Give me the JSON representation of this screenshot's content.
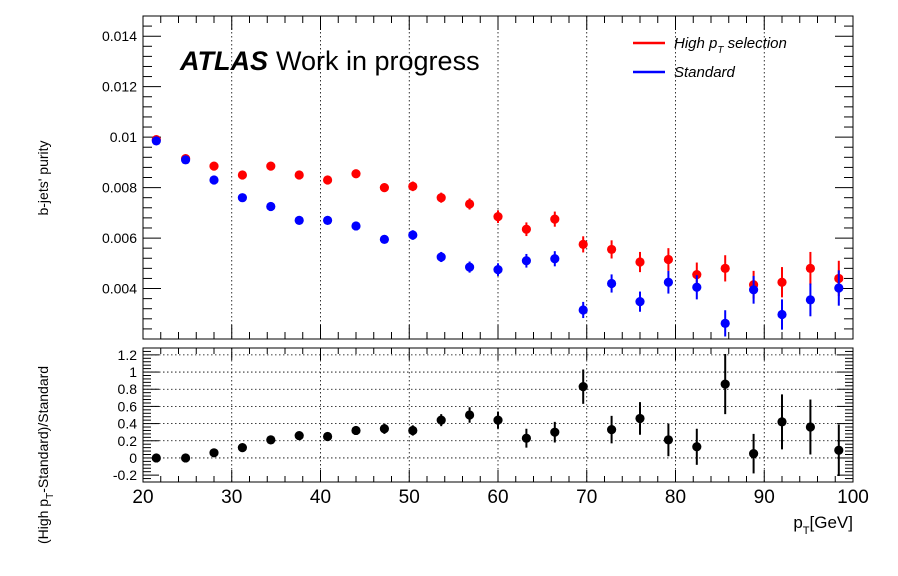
{
  "atlas_label": {
    "bold": "ATLAS",
    "rest": "Work in progress"
  },
  "legend": {
    "high_pt": {
      "prefix": "High p",
      "sub": "T",
      "suffix": " selection",
      "color": "#ff0000"
    },
    "standard": {
      "label": "Standard",
      "color": "#0000ff"
    }
  },
  "chart_data": [
    {
      "type": "scatter",
      "ylabel": "b-jets' purity",
      "xlim": [
        20,
        100
      ],
      "ylim": [
        0.002,
        0.0148
      ],
      "y_ticks": [
        "0.004",
        "0.006",
        "0.008",
        "0.01",
        "0.012",
        "0.014"
      ],
      "y_tick_values": [
        0.004,
        0.006,
        0.008,
        0.01,
        0.012,
        0.014
      ],
      "grid_x": [
        30,
        40,
        50,
        60,
        70,
        80,
        90
      ],
      "x": [
        21.5,
        24.8,
        28.0,
        31.2,
        34.4,
        37.6,
        40.8,
        44.0,
        47.2,
        50.4,
        53.6,
        56.8,
        60.0,
        63.2,
        66.4,
        69.6,
        72.8,
        76.0,
        79.2,
        82.4,
        85.6,
        88.8,
        92.0,
        95.2,
        98.4
      ],
      "series": [
        {
          "name": "High pT selection",
          "color": "#ff0000",
          "values": [
            0.0099,
            0.00915,
            0.00885,
            0.0085,
            0.00885,
            0.0085,
            0.0083,
            0.00855,
            0.008,
            0.00805,
            0.0076,
            0.00735,
            0.00685,
            0.00635,
            0.00675,
            0.00575,
            0.00555,
            0.00505,
            0.00515,
            0.00455,
            0.0048,
            0.00415,
            0.00425,
            0.0048,
            0.0044
          ],
          "errors": [
            0.0001,
            0.00012,
            0.00012,
            0.00013,
            0.00013,
            0.00014,
            0.00014,
            0.00015,
            0.00017,
            0.00019,
            0.0002,
            0.00022,
            0.00025,
            0.00027,
            0.0003,
            0.00032,
            0.00036,
            0.0004,
            0.00045,
            0.00048,
            0.00052,
            0.00055,
            0.0006,
            0.00065,
            0.0007
          ]
        },
        {
          "name": "Standard",
          "color": "#0000ff",
          "values": [
            0.00985,
            0.0091,
            0.0083,
            0.0076,
            0.00725,
            0.0067,
            0.0067,
            0.00648,
            0.00595,
            0.00612,
            0.00525,
            0.00485,
            0.00475,
            0.0051,
            0.00518,
            0.00315,
            0.0042,
            0.00348,
            0.00425,
            0.00405,
            0.00262,
            0.00395,
            0.00297,
            0.00355,
            0.00402
          ],
          "errors": [
            0.0001,
            0.00012,
            0.00012,
            0.00013,
            0.00013,
            0.00014,
            0.00014,
            0.00015,
            0.00017,
            0.00019,
            0.0002,
            0.00022,
            0.00025,
            0.00027,
            0.0003,
            0.00032,
            0.00036,
            0.0004,
            0.00045,
            0.00048,
            0.00052,
            0.00055,
            0.0006,
            0.00065,
            0.0007
          ]
        }
      ]
    },
    {
      "type": "scatter",
      "xlabel": {
        "main": "p",
        "sub": "T",
        "rest": "[GeV]"
      },
      "ylabel": {
        "prefix": "(High p",
        "sub": "T",
        "rest": "-Standard)/Standard"
      },
      "xlim": [
        20,
        100
      ],
      "ylim": [
        -0.28,
        1.28
      ],
      "x_ticks": [
        "20",
        "30",
        "40",
        "50",
        "60",
        "70",
        "80",
        "90",
        "100"
      ],
      "x_tick_values": [
        20,
        30,
        40,
        50,
        60,
        70,
        80,
        90,
        100
      ],
      "y_ticks": [
        "-0.2",
        "0",
        "0.2",
        "0.4",
        "0.6",
        "0.8",
        "1",
        "1.2"
      ],
      "y_tick_values": [
        -0.2,
        0,
        0.2,
        0.4,
        0.6,
        0.8,
        1.0,
        1.2
      ],
      "grid_x": [
        30,
        40,
        50,
        60,
        70,
        80,
        90
      ],
      "grid_y": [
        0,
        0.2,
        0.4,
        0.6,
        0.8,
        1.0,
        1.2
      ],
      "series": [
        {
          "name": "ratio",
          "color": "#000000",
          "x": [
            21.5,
            24.8,
            28.0,
            31.2,
            34.4,
            37.6,
            40.8,
            44.0,
            47.2,
            50.4,
            53.6,
            56.8,
            60.0,
            63.2,
            66.4,
            69.6,
            72.8,
            76.0,
            79.2,
            82.4,
            85.6,
            88.8,
            92.0,
            95.2,
            98.4
          ],
          "values": [
            0.0,
            0.0,
            0.06,
            0.12,
            0.21,
            0.26,
            0.25,
            0.32,
            0.34,
            0.32,
            0.44,
            0.5,
            0.44,
            0.23,
            0.3,
            0.83,
            0.33,
            0.46,
            0.21,
            0.13,
            0.86,
            0.05,
            0.42,
            0.36,
            0.09
          ],
          "errors": [
            0.02,
            0.02,
            0.03,
            0.03,
            0.04,
            0.04,
            0.04,
            0.05,
            0.06,
            0.06,
            0.07,
            0.09,
            0.1,
            0.11,
            0.12,
            0.2,
            0.16,
            0.19,
            0.19,
            0.21,
            0.35,
            0.23,
            0.32,
            0.32,
            0.3
          ]
        }
      ]
    }
  ]
}
